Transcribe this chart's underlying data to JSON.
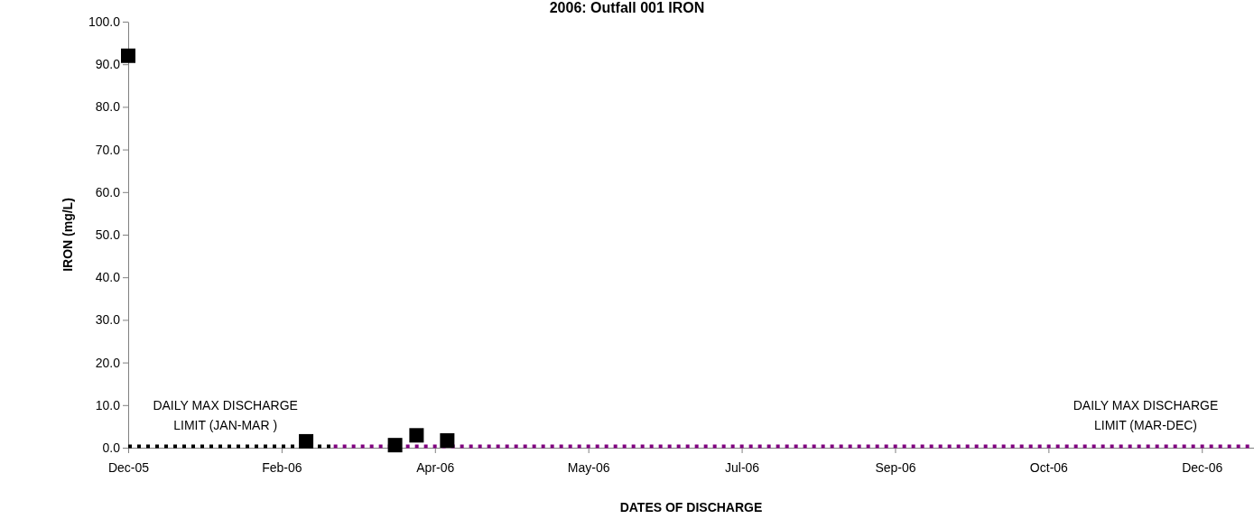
{
  "chart_data": {
    "type": "scatter",
    "title": "2006: Outfall 001 IRON",
    "xlabel": "DATES OF DISCHARGE",
    "ylabel": "IRON (mg/L)",
    "xlim": [
      "2005-12-28",
      "2006-12-30"
    ],
    "xticks": [
      {
        "value": "2005-12-28",
        "label": "Dec-05"
      },
      {
        "value": "2006-02-16",
        "label": "Feb-06"
      },
      {
        "value": "2006-04-07",
        "label": "Apr-06"
      },
      {
        "value": "2006-05-27",
        "label": "May-06"
      },
      {
        "value": "2006-07-16",
        "label": "Jul-06"
      },
      {
        "value": "2006-09-04",
        "label": "Sep-06"
      },
      {
        "value": "2006-10-24",
        "label": "Oct-06"
      },
      {
        "value": "2006-12-13",
        "label": "Dec-06"
      }
    ],
    "ylim": [
      0,
      100
    ],
    "yticks": [
      {
        "value": 0,
        "label": "0.0"
      },
      {
        "value": 10,
        "label": "10.0"
      },
      {
        "value": 20,
        "label": "20.0"
      },
      {
        "value": 30,
        "label": "30.0"
      },
      {
        "value": 40,
        "label": "40.0"
      },
      {
        "value": 50,
        "label": "50.0"
      },
      {
        "value": 60,
        "label": "60.0"
      },
      {
        "value": 70,
        "label": "70.0"
      },
      {
        "value": 80,
        "label": "80.0"
      },
      {
        "value": 90,
        "label": "90.0"
      },
      {
        "value": 100,
        "label": "100.0"
      }
    ],
    "grid": false,
    "series": [
      {
        "color": "#000000",
        "marker": "square",
        "x": [
          "2005-12-28",
          "2006-02-24",
          "2006-03-25",
          "2006-04-01",
          "2006-04-11"
        ],
        "values": [
          92,
          1.5,
          0.6,
          2.9,
          1.7
        ]
      },
      {
        "type": "line",
        "name": "DAILY MAX DISCHARGE LIMIT (JAN-MAR )",
        "color": "#000000",
        "marker": "none",
        "line_style": "dotted",
        "x": [
          "2005-12-28",
          "2006-03-05"
        ],
        "values": [
          0.3,
          0.3
        ]
      },
      {
        "type": "line",
        "name": "DAILY MAX DISCHARGE LIMIT (MAR-DEC)",
        "color": "#800080",
        "marker": "none",
        "line_style": "dotted",
        "x": [
          "2006-03-05",
          "2006-12-30"
        ],
        "values": [
          0.3,
          0.3
        ]
      }
    ]
  }
}
